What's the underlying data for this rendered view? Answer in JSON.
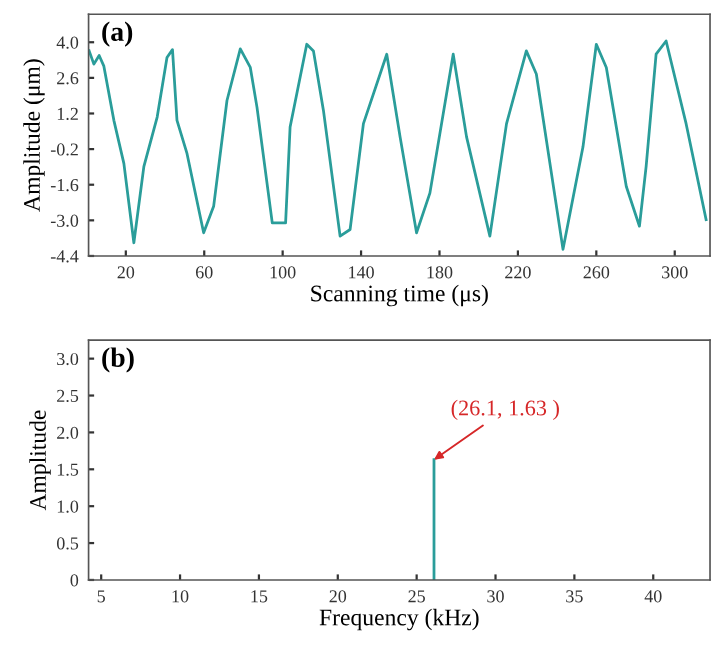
{
  "chart_data": [
    {
      "type": "line",
      "xlabel": "Scanning time (μs)",
      "ylabel": "Amplitude (μm)",
      "annotations": [
        "(a)"
      ],
      "x": [
        1.3,
        3.7,
        6.4,
        8.8,
        13.9,
        19,
        24.1,
        29.2,
        36,
        41,
        43.8,
        46.1,
        51.2,
        59.7,
        64.8,
        71.6,
        78.4,
        83.5,
        86.9,
        94.7,
        101.5,
        103.8,
        112.3,
        115.7,
        120.8,
        129.3,
        134.4,
        141.2,
        153.1,
        159.9,
        168.3,
        175.1,
        187,
        193.8,
        205.7,
        214.2,
        224.3,
        229.4,
        243,
        253.2,
        260,
        265.1,
        275.3,
        282,
        285.4,
        290.5,
        295.6,
        305.8,
        316
      ],
      "series": [
        {
          "color": "#2a9d9a",
          "values": [
            3.66,
            3.14,
            3.48,
            3.06,
            0.93,
            -0.76,
            -3.88,
            -0.89,
            1.06,
            3.4,
            3.71,
            0.93,
            -0.37,
            -3.49,
            -2.45,
            1.71,
            3.74,
            3.01,
            1.45,
            -3.1,
            -3.1,
            0.67,
            3.92,
            3.66,
            1.32,
            -3.62,
            -3.36,
            0.8,
            3.53,
            0.28,
            -3.49,
            -1.93,
            3.53,
            0.28,
            -3.62,
            0.8,
            3.66,
            2.75,
            -4.14,
            -0.11,
            3.92,
            3.01,
            -1.67,
            -3.23,
            -0.89,
            3.53,
            4.05,
            0.8,
            -2.97
          ]
        }
      ],
      "xlim": [
        1,
        318
      ],
      "xticks": [
        20,
        60,
        100,
        140,
        180,
        220,
        260,
        300
      ],
      "ylim": [
        -4.4,
        5.1
      ],
      "yticks": [
        {
          "value": -4.4,
          "label": "-4.4"
        },
        {
          "value": -3.0,
          "label": "-3.0"
        },
        {
          "value": -1.6,
          "label": "-1.6"
        },
        {
          "value": -0.2,
          "label": "-0.2"
        },
        {
          "value": 1.2,
          "label": "1.2"
        },
        {
          "value": 2.6,
          "label": "2.6"
        },
        {
          "value": 4.0,
          "label": "4.0"
        }
      ],
      "grid": false,
      "legend": false
    },
    {
      "type": "line",
      "xlabel": "Frequency (kHz)",
      "ylabel": "Amplitude",
      "annotations": [
        "(b)",
        {
          "text": "(26.1, 1.63 )",
          "x": 26.1,
          "y": 1.63
        }
      ],
      "x": [
        26.1,
        26.1
      ],
      "series": [
        {
          "color": "#2a9d9a",
          "values": [
            0,
            1.63
          ]
        }
      ],
      "xlim": [
        4.2,
        43.6
      ],
      "xticks": [
        5,
        10,
        15,
        20,
        25,
        30,
        35,
        40
      ],
      "ylim": [
        0,
        3.25
      ],
      "yticks": [
        0,
        {
          "value": 0.5,
          "label": "0.5"
        },
        {
          "value": 1.0,
          "label": "1.0"
        },
        {
          "value": 1.5,
          "label": "1.5"
        },
        {
          "value": 2.0,
          "label": "2.0"
        },
        {
          "value": 2.5,
          "label": "2.5"
        },
        {
          "value": 3.0,
          "label": "3.0"
        }
      ],
      "grid": false,
      "legend": false
    }
  ]
}
